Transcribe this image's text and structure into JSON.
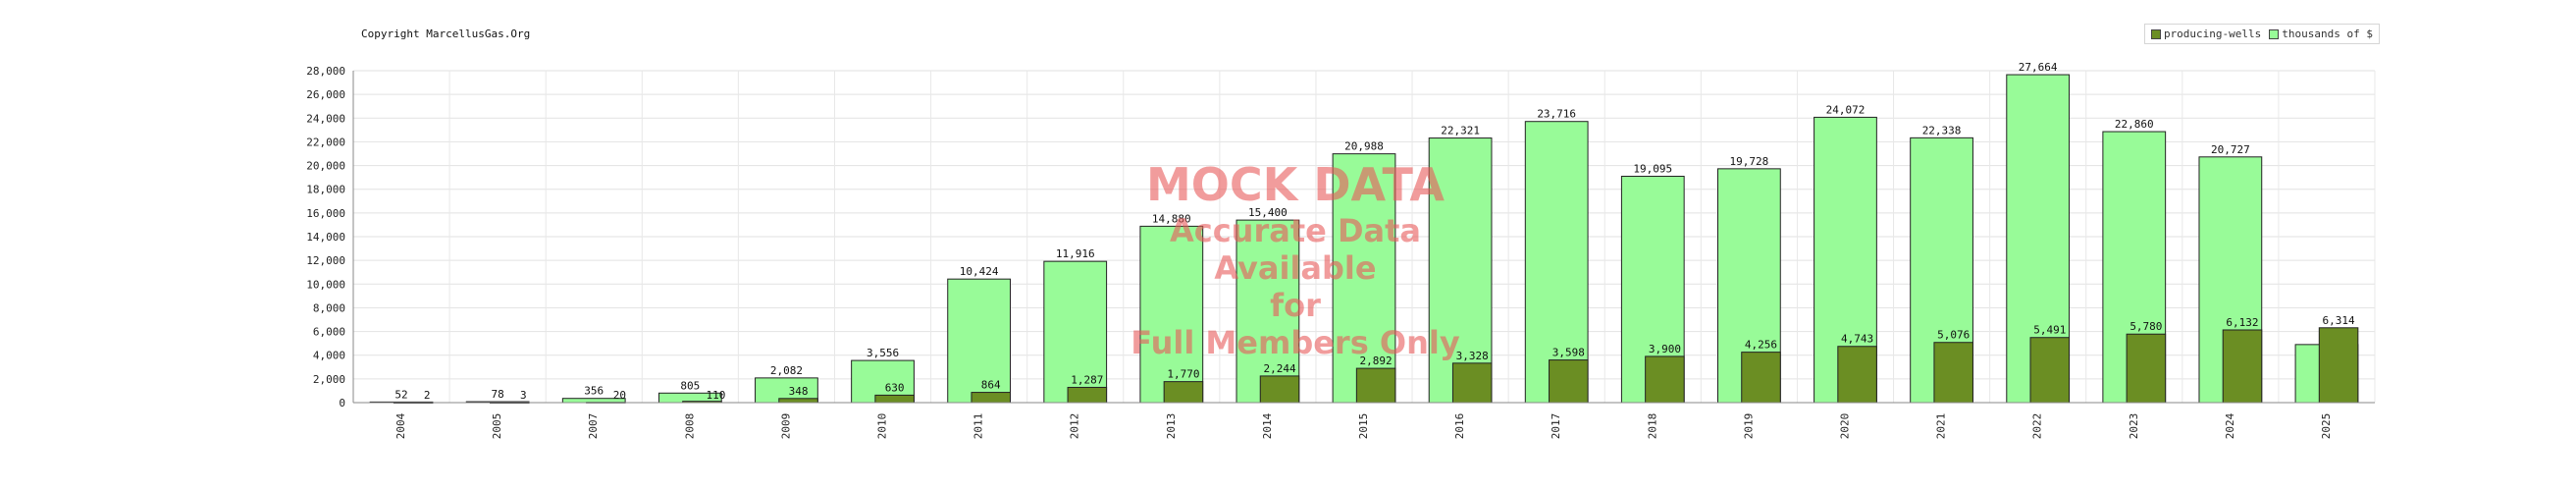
{
  "copyright": "Copyright MarcellusGas.Org",
  "legend": [
    {
      "label": "producing-wells",
      "color": "#6b8e23"
    },
    {
      "label": "thousands of $",
      "color": "#98fb98"
    }
  ],
  "watermark": {
    "title": "MOCK DATA",
    "line1": "Accurate Data Available",
    "line2": "for",
    "line3": "Full Members Only"
  },
  "chart_data": {
    "type": "bar",
    "categories": [
      "2004",
      "2005",
      "2007",
      "2008",
      "2009",
      "2010",
      "2011",
      "2012",
      "2013",
      "2014",
      "2015",
      "2016",
      "2017",
      "2018",
      "2019",
      "2020",
      "2021",
      "2022",
      "2023",
      "2024",
      "2025"
    ],
    "series": [
      {
        "name": "thousands of $",
        "color": "#98fb98",
        "values": [
          52,
          78,
          356,
          805,
          2082,
          3556,
          10424,
          11916,
          14880,
          15400,
          20988,
          22321,
          23716,
          19095,
          19728,
          24072,
          22338,
          27664,
          22860,
          20727,
          4900
        ],
        "labels": [
          "52",
          "78",
          "356",
          "805",
          "2,082",
          "3,556",
          "10,424",
          "11,916",
          "14,880",
          "15,400",
          "20,988",
          "22,321",
          "23,716",
          "19,095",
          "19,728",
          "24,072",
          "22,338",
          "27,664",
          "22,860",
          "20,727",
          ""
        ]
      },
      {
        "name": "producing-wells",
        "color": "#6b8e23",
        "values": [
          2,
          3,
          20,
          110,
          348,
          630,
          864,
          1287,
          1770,
          2244,
          2892,
          3328,
          3598,
          3900,
          4256,
          4743,
          5076,
          5491,
          5780,
          6132,
          6314
        ],
        "labels": [
          "2",
          "3",
          "20",
          "110",
          "348",
          "630",
          "864",
          "1,287",
          "1,770",
          "2,244",
          "2,892",
          "3,328",
          "3,598",
          "3,900",
          "4,256",
          "4,743",
          "5,076",
          "5,491",
          "5,780",
          "6,132",
          "6,314"
        ]
      }
    ],
    "ylim": [
      0,
      28000
    ],
    "yticks": [
      "0",
      "2,000",
      "4,000",
      "6,000",
      "8,000",
      "10,000",
      "12,000",
      "14,000",
      "16,000",
      "18,000",
      "20,000",
      "22,000",
      "24,000",
      "26,000",
      "28,000"
    ],
    "grid": true,
    "legend_position": "top-right",
    "title": "",
    "xlabel": "",
    "ylabel": ""
  }
}
